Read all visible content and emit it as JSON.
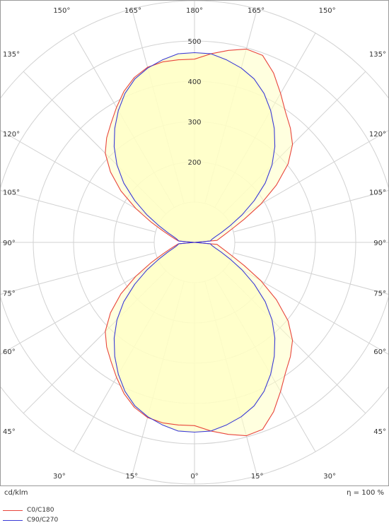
{
  "chart_data": {
    "type": "polar",
    "radial_ticks": [
      "200",
      "300",
      "400",
      "500"
    ],
    "radial_max": 600,
    "angle_labels": [
      "0°",
      "15°",
      "30°",
      "45°",
      "60°",
      "75°",
      "90°",
      "105°",
      "120°",
      "135°",
      "150°",
      "165°",
      "180°"
    ],
    "unit_label": "cd/klm",
    "efficiency_label": "η = 100 %",
    "legend": [
      {
        "name": "C0/C180",
        "color": "#e8453c"
      },
      {
        "name": "C90/C270",
        "color": "#3a3ad6"
      }
    ],
    "fill_color": "#ffffc4",
    "series": [
      {
        "name": "C0/C180",
        "angles_deg": [
          0,
          5,
          10,
          15,
          20,
          25,
          30,
          35,
          40,
          45,
          50,
          55,
          60,
          65,
          70,
          75,
          80,
          85,
          90
        ],
        "right_values": [
          455,
          470,
          484,
          497,
          494,
          464,
          427,
          394,
          370,
          344,
          303,
          248,
          190,
          136,
          100,
          79,
          65,
          56,
          0
        ],
        "left_values": [
          455,
          455,
          455,
          450,
          436,
          414,
          387,
          361,
          339,
          313,
          272,
          223,
          168,
          118,
          83,
          62,
          49,
          40,
          0
        ]
      },
      {
        "name": "C90/C270",
        "angles_deg": [
          0,
          5,
          10,
          15,
          20,
          25,
          30,
          35,
          40,
          45,
          50,
          55,
          60,
          65,
          70,
          75,
          80,
          85,
          90
        ],
        "right_values": [
          471,
          470,
          460,
          448,
          432,
          408,
          378,
          345,
          310,
          272,
          229,
          181,
          136,
          97,
          70,
          53,
          44,
          39,
          0
        ],
        "left_values": [
          471,
          470,
          460,
          448,
          432,
          408,
          378,
          345,
          310,
          272,
          229,
          181,
          136,
          97,
          70,
          53,
          44,
          39,
          0
        ]
      }
    ]
  }
}
